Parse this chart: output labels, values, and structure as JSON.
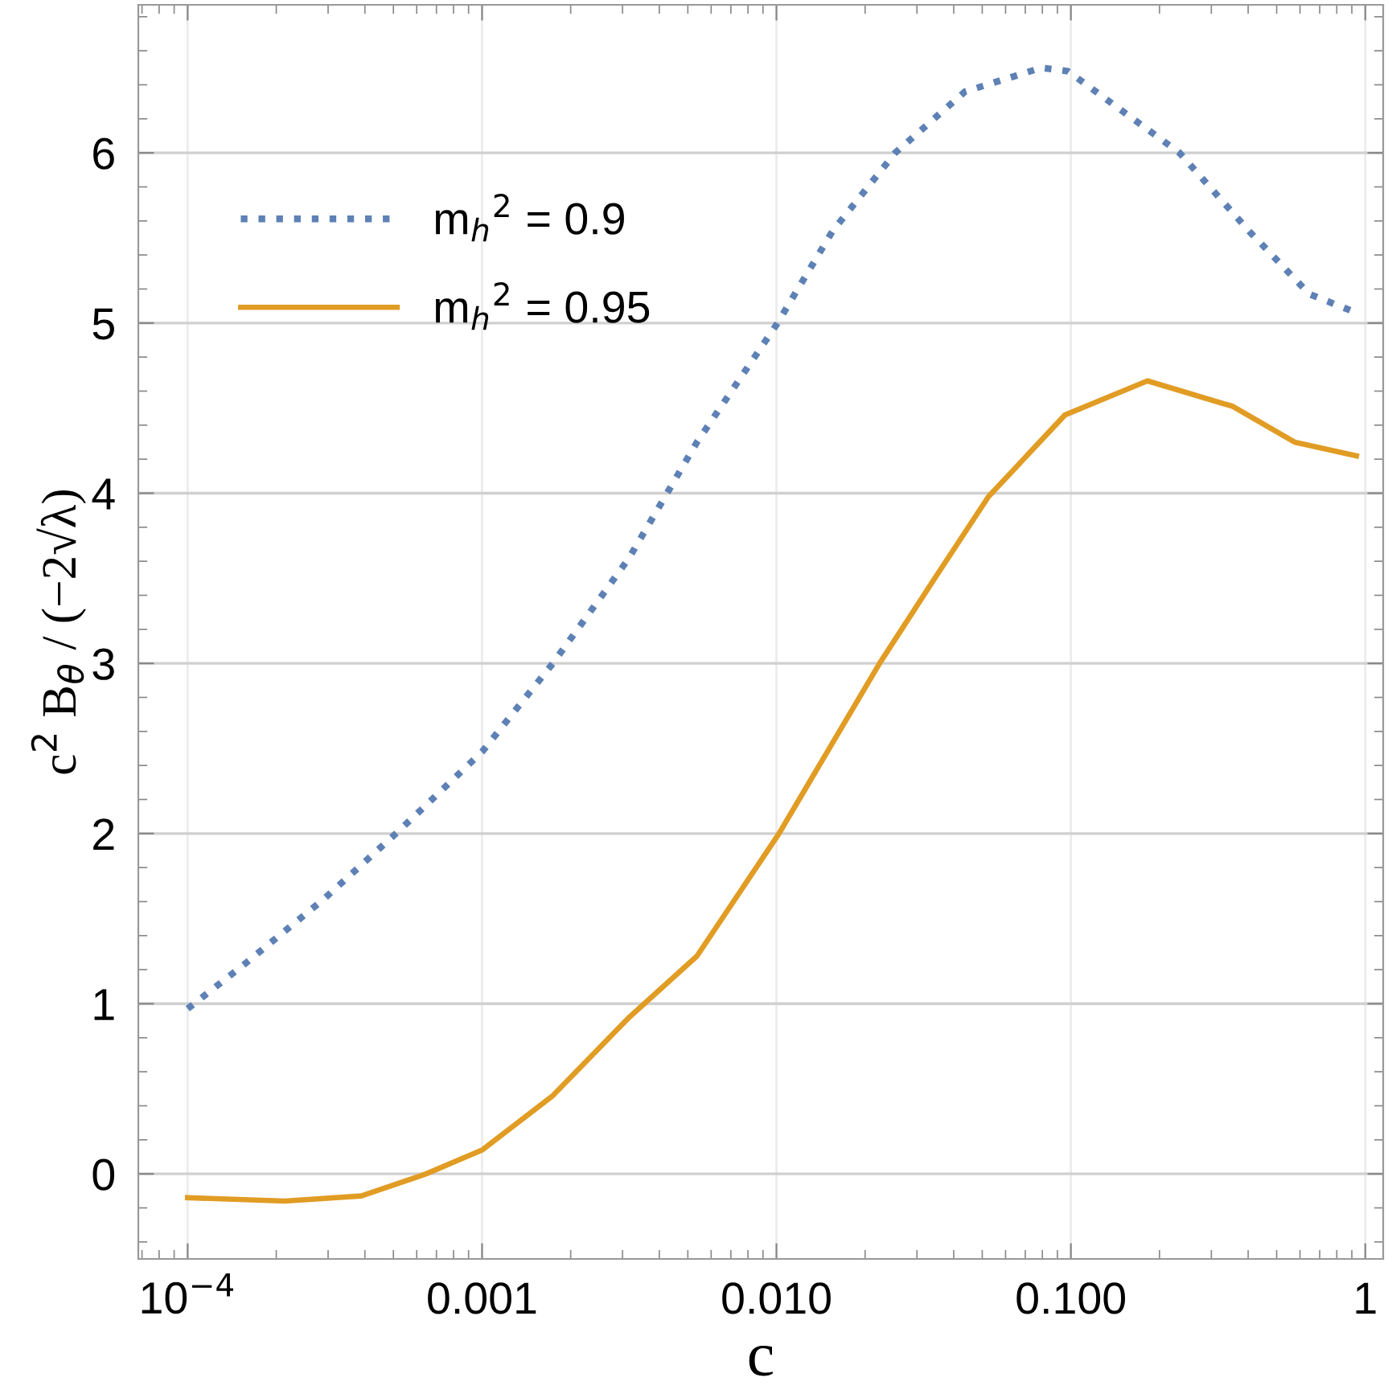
{
  "chart_data": {
    "type": "line",
    "xlabel": "c",
    "ylabel": "c$^{2}$ B$_{θ}$ / (−2√λ)",
    "log": "x",
    "xlim": [
      6.8e-05,
      1.15
    ],
    "ylim": [
      -0.5,
      6.87
    ],
    "xticks": [
      {
        "value": 0.0001,
        "label": "10$^{−4}$"
      },
      {
        "value": 0.001,
        "label": "0.001"
      },
      {
        "value": 0.01,
        "label": "0.010"
      },
      {
        "value": 0.1,
        "label": "0.100"
      },
      1
    ],
    "yticks": [
      0,
      1,
      2,
      3,
      4,
      5,
      6
    ],
    "grid": true,
    "legend": "top left",
    "series": [
      {
        "name": "m$_{h}$$^{2}$ = 0.9",
        "color": "#5e81b5",
        "line_style": "dotted",
        "x": [
          0.0001,
          0.000158,
          0.000288,
          0.000525,
          0.001,
          0.00174,
          0.00316,
          0.00537,
          0.01,
          0.0155,
          0.0253,
          0.0437,
          0.0794,
          0.0977,
          0.234,
          0.403,
          0.646,
          0.933
        ],
        "values": [
          0.97,
          1.24,
          1.61,
          2.02,
          2.48,
          3.0,
          3.62,
          4.3,
          4.99,
          5.54,
          6.0,
          6.36,
          6.5,
          6.48,
          6.0,
          5.54,
          5.17,
          5.06
        ]
      },
      {
        "name": "m$_{h}$$^{2}$ = 0.95",
        "color": "#e19c24",
        "line_style": "solid",
        "x": [
          0.0001,
          0.000214,
          0.000389,
          0.000646,
          0.001,
          0.00174,
          0.00316,
          0.00537,
          0.0102,
          0.0224,
          0.0339,
          0.0525,
          0.0955,
          0.182,
          0.355,
          0.575,
          0.933
        ],
        "values": [
          -0.14,
          -0.16,
          -0.13,
          0.0,
          0.14,
          0.46,
          0.92,
          1.28,
          2.0,
          3.0,
          3.48,
          3.98,
          4.46,
          4.66,
          4.51,
          4.3,
          4.22
        ]
      }
    ]
  }
}
